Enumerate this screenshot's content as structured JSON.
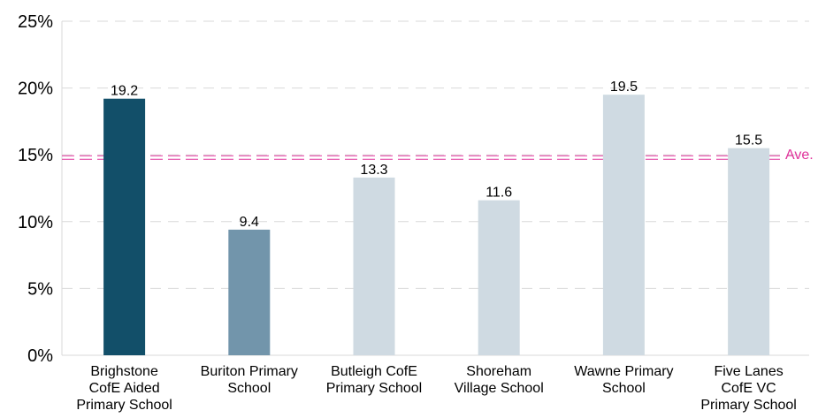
{
  "chart_data": {
    "type": "bar",
    "categories": [
      [
        "Brighstone",
        "CofE Aided",
        "Primary School"
      ],
      [
        "Buriton Primary",
        "School"
      ],
      [
        "Butleigh CofE",
        "Primary School"
      ],
      [
        "Shoreham",
        "Village School"
      ],
      [
        "Wawne Primary",
        "School"
      ],
      [
        "Five Lanes",
        "CofE VC",
        "Primary School"
      ]
    ],
    "values": [
      19.2,
      9.4,
      13.3,
      11.6,
      19.5,
      15.5
    ],
    "data_labels": [
      "19.2",
      "9.4",
      "13.3",
      "11.6",
      "19.5",
      "15.5"
    ],
    "bar_colors": [
      "#124f69",
      "#7295ab",
      "#cfdae2",
      "#cfdae2",
      "#cfdae2",
      "#cfdae2"
    ],
    "ylim": [
      0,
      25
    ],
    "yticks": [
      0,
      5,
      10,
      15,
      20,
      25
    ],
    "ytick_labels": [
      "0%",
      "5%",
      "10%",
      "15%",
      "20%",
      "25%"
    ],
    "grid": true,
    "reference_line": {
      "value": 14.8,
      "label": "Ave.",
      "color": "#e0329b"
    },
    "title": "",
    "xlabel": "",
    "ylabel": ""
  }
}
